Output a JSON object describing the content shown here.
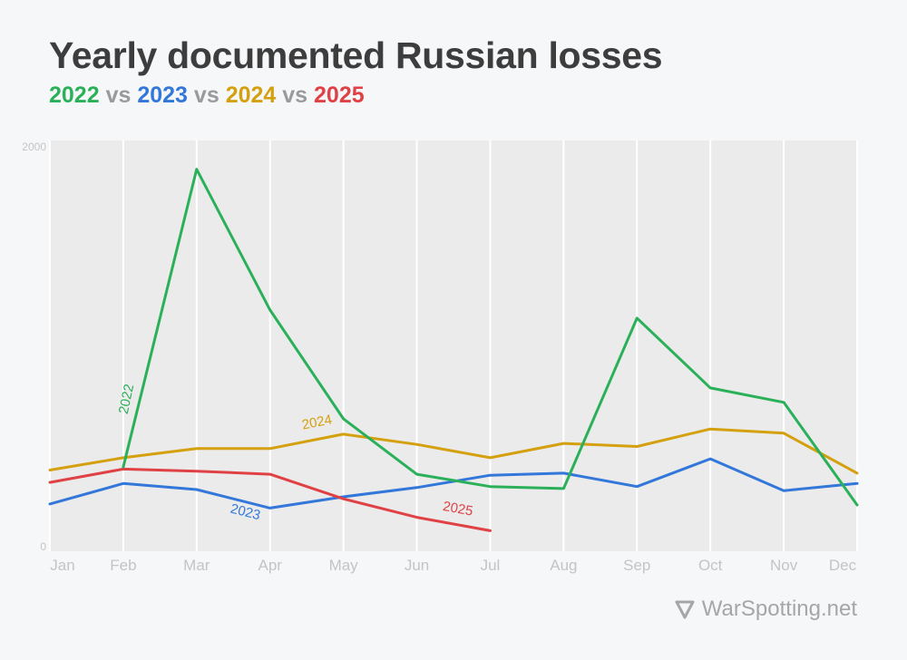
{
  "header": {
    "title": "Yearly documented Russian losses",
    "subtitle": {
      "y2022": "2022",
      "y2023": "2023",
      "y2024": "2024",
      "y2025": "2025",
      "vs": "vs"
    }
  },
  "colors": {
    "y2022": "#2bb05a",
    "y2023": "#3277d9",
    "y2024": "#d4a00e",
    "y2025": "#e04145",
    "plot_bg": "#ebebeb",
    "grid": "#ffffff",
    "tick": "#c4c4c4"
  },
  "chart_data": {
    "type": "line",
    "x": [
      "Jan",
      "Feb",
      "Mar",
      "Apr",
      "May",
      "Jun",
      "Jul",
      "Aug",
      "Sep",
      "Oct",
      "Nov",
      "Dec"
    ],
    "ylim": [
      0,
      2000
    ],
    "yticks": [
      0,
      2000
    ],
    "grid": true,
    "series": [
      {
        "name": "2022",
        "color": "#2bb05a",
        "values": [
          null,
          410,
          1860,
          1175,
          645,
          375,
          315,
          305,
          1135,
          795,
          725,
          225
        ]
      },
      {
        "name": "2023",
        "color": "#3277d9",
        "values": [
          230,
          330,
          300,
          210,
          265,
          310,
          370,
          380,
          315,
          450,
          295,
          330
        ]
      },
      {
        "name": "2024",
        "color": "#d4a00e",
        "values": [
          395,
          455,
          500,
          500,
          570,
          520,
          455,
          525,
          510,
          595,
          575,
          380
        ]
      },
      {
        "name": "2025",
        "color": "#e04145",
        "values": [
          335,
          400,
          390,
          375,
          255,
          165,
          100,
          null,
          null,
          null,
          null,
          null
        ]
      }
    ]
  },
  "footer": {
    "watermark": "WarSpotting.net"
  }
}
